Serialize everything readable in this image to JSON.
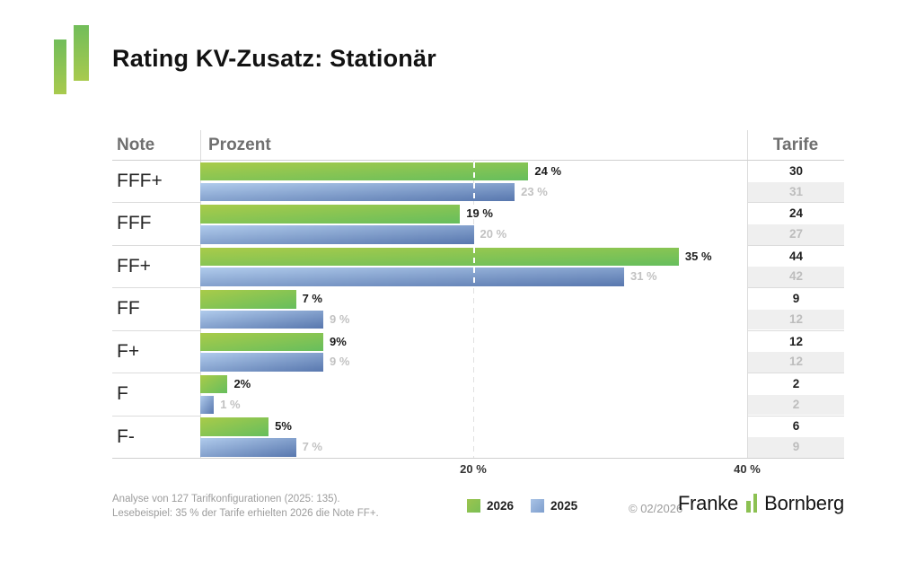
{
  "header": {
    "title": "Rating KV-Zusatz: Stationär"
  },
  "table": {
    "columns": [
      "Note",
      "Prozent",
      "Tarife"
    ]
  },
  "chart_data": {
    "type": "bar",
    "orientation": "horizontal",
    "title": "Rating KV-Zusatz: Stationär",
    "categories": [
      "FFF+",
      "FFF",
      "FF+",
      "FF",
      "F+",
      "F",
      "F-"
    ],
    "series": [
      {
        "name": "2026",
        "color": "#8cc152",
        "gradient": [
          "#a9cb49",
          "#66be5d"
        ],
        "values": [
          24,
          19,
          35,
          7,
          9,
          2,
          5
        ],
        "value_labels": [
          "24 %",
          "19 %",
          "35 %",
          "7 %",
          "9%",
          "2%",
          "5%"
        ],
        "tarife": [
          30,
          24,
          44,
          9,
          12,
          2,
          6
        ]
      },
      {
        "name": "2025",
        "color": "#92b4db",
        "gradient": [
          "#b0cbec",
          "#5877ae"
        ],
        "values": [
          23,
          20,
          31,
          9,
          9,
          1,
          7
        ],
        "value_labels": [
          "23 %",
          "20 %",
          "31 %",
          "9 %",
          "9 %",
          "1 %",
          "7 %"
        ],
        "tarife": [
          31,
          27,
          42,
          12,
          12,
          2,
          9
        ]
      }
    ],
    "xlim": [
      0,
      40
    ],
    "x_ticks": [
      {
        "value": 20,
        "label": "20 %"
      },
      {
        "value": 40,
        "label": "40 %"
      }
    ],
    "gridline_value": 20,
    "grid": "dashed vertical at 20%",
    "legend_position": "bottom"
  },
  "footer": {
    "note_line1": "Analyse von 127 Tarifkonfigurationen (2025: 135).",
    "note_line2": "Lesebeispiel: 35 % der Tarife erhielten 2026 die Note FF+.",
    "legend": [
      {
        "label": "2026",
        "color": "#8cc152"
      },
      {
        "label": "2025",
        "color": "#92b4db"
      }
    ],
    "copyright": "© 02/2026",
    "brand": {
      "name1": "Franke",
      "name2": "Bornberg"
    }
  }
}
